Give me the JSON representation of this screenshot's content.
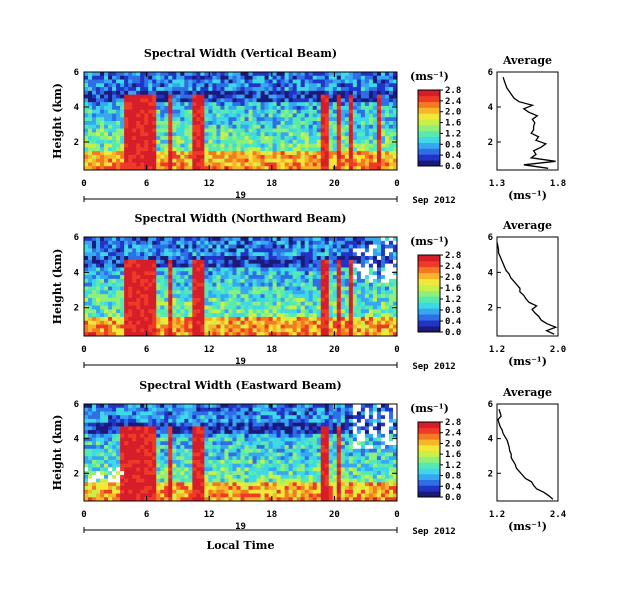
{
  "figure": {
    "xlabel": "Local Time",
    "date_label": "Sep 2012",
    "day_label": "19"
  },
  "colormap": [
    "#1a1a78",
    "#2233c8",
    "#2f6fe6",
    "#36a8f2",
    "#3fd8e6",
    "#56eab0",
    "#8ef07a",
    "#c8f048",
    "#f2e838",
    "#f7b52a",
    "#f47a22",
    "#ee3a26",
    "#d61e2a"
  ],
  "chart_data": [
    {
      "type": "heatmap",
      "title": "Spectral Width (Vertical Beam)",
      "ylabel": "Height (km)",
      "x_ticks": [
        "0",
        "6",
        "12",
        "18",
        "20",
        "0"
      ],
      "xlim": [
        0,
        24
      ],
      "y_ticks": [
        "2",
        "4",
        "6"
      ],
      "ylim": [
        0.4,
        6.0
      ],
      "colorbar": {
        "unit": "(ms⁻¹)",
        "ticks": [
          "0.0",
          "0.4",
          "0.8",
          "1.2",
          "1.6",
          "2.0",
          "2.4",
          "2.8"
        ],
        "range": [
          0.0,
          2.8
        ]
      },
      "hot_bands": [
        [
          3.0,
          5.4
        ],
        [
          6.4,
          6.9
        ],
        [
          8.2,
          9.2
        ],
        [
          18.2,
          18.7
        ],
        [
          19.3,
          19.7
        ],
        [
          20.2,
          20.5
        ],
        [
          22.5,
          22.8
        ]
      ],
      "average": {
        "title": "Average",
        "xlabel": "(ms⁻¹)",
        "x_ticks": [
          "1.3",
          "1.8"
        ],
        "xlim": [
          1.3,
          1.8
        ],
        "y_ticks": [
          "2",
          "4",
          "6"
        ],
        "ylim": [
          0.4,
          6.0
        ],
        "height": [
          0.5,
          0.7,
          0.9,
          1.1,
          1.3,
          1.5,
          1.7,
          1.9,
          2.1,
          2.3,
          2.5,
          2.7,
          2.9,
          3.1,
          3.3,
          3.5,
          3.7,
          3.9,
          4.1,
          4.3,
          4.5,
          4.7,
          4.9,
          5.1,
          5.3,
          5.5,
          5.7
        ],
        "value": [
          1.72,
          1.52,
          1.78,
          1.58,
          1.62,
          1.6,
          1.66,
          1.7,
          1.62,
          1.64,
          1.58,
          1.6,
          1.6,
          1.61,
          1.59,
          1.63,
          1.56,
          1.52,
          1.59,
          1.48,
          1.44,
          1.42,
          1.4,
          1.38,
          1.37,
          1.36,
          1.35
        ]
      }
    },
    {
      "type": "heatmap",
      "title": "Spectral Width (Northward Beam)",
      "ylabel": "Height (km)",
      "x_ticks": [
        "0",
        "6",
        "12",
        "18",
        "20",
        "0"
      ],
      "xlim": [
        0,
        24
      ],
      "y_ticks": [
        "2",
        "4",
        "6"
      ],
      "ylim": [
        0.4,
        6.0
      ],
      "colorbar": {
        "unit": "(ms⁻¹)",
        "ticks": [
          "0.0",
          "0.4",
          "0.8",
          "1.2",
          "1.6",
          "2.0",
          "2.4",
          "2.8"
        ],
        "range": [
          0.0,
          2.8
        ]
      },
      "hot_bands": [
        [
          3.0,
          5.4
        ],
        [
          6.4,
          6.9
        ],
        [
          8.2,
          9.2
        ],
        [
          18.2,
          18.7
        ],
        [
          19.3,
          19.7
        ],
        [
          20.2,
          20.5
        ]
      ],
      "average": {
        "title": "Average",
        "xlabel": "(ms⁻¹)",
        "x_ticks": [
          "1.2",
          "2.0"
        ],
        "xlim": [
          1.2,
          2.0
        ],
        "y_ticks": [
          "2",
          "4",
          "6"
        ],
        "ylim": [
          0.4,
          6.0
        ],
        "height": [
          0.5,
          0.7,
          0.9,
          1.1,
          1.3,
          1.5,
          1.7,
          1.9,
          2.1,
          2.3,
          2.5,
          2.7,
          2.9,
          3.1,
          3.3,
          3.5,
          3.7,
          3.9,
          4.1,
          4.3,
          4.5,
          4.7,
          4.9,
          5.1,
          5.3,
          5.5,
          5.7
        ],
        "value": [
          1.95,
          1.85,
          1.97,
          1.85,
          1.78,
          1.75,
          1.7,
          1.66,
          1.72,
          1.62,
          1.58,
          1.55,
          1.5,
          1.5,
          1.46,
          1.42,
          1.38,
          1.36,
          1.32,
          1.3,
          1.28,
          1.26,
          1.24,
          1.22,
          1.22,
          1.21,
          1.2
        ]
      }
    },
    {
      "type": "heatmap",
      "title": "Spectral Width (Eastward Beam)",
      "ylabel": "Height (km)",
      "x_ticks": [
        "0",
        "6",
        "12",
        "18",
        "20",
        "0"
      ],
      "xlim": [
        0,
        24
      ],
      "y_ticks": [
        "2",
        "4",
        "6"
      ],
      "ylim": [
        0.4,
        6.0
      ],
      "colorbar": {
        "unit": "(ms⁻¹)",
        "ticks": [
          "0.0",
          "0.4",
          "0.8",
          "1.2",
          "1.6",
          "2.0",
          "2.4",
          "2.8"
        ],
        "range": [
          0.0,
          2.8
        ]
      },
      "hot_bands": [
        [
          2.8,
          5.4
        ],
        [
          6.4,
          6.9
        ],
        [
          8.2,
          9.2
        ],
        [
          18.2,
          18.7
        ],
        [
          19.3,
          19.7
        ]
      ],
      "average": {
        "title": "Average",
        "xlabel": "(ms⁻¹)",
        "x_ticks": [
          "1.2",
          "2.4"
        ],
        "xlim": [
          1.2,
          2.4
        ],
        "y_ticks": [
          "2",
          "4",
          "6"
        ],
        "ylim": [
          0.4,
          6.0
        ],
        "height": [
          0.5,
          0.7,
          0.9,
          1.1,
          1.3,
          1.5,
          1.7,
          1.9,
          2.1,
          2.3,
          2.5,
          2.7,
          2.9,
          3.1,
          3.3,
          3.5,
          3.7,
          3.9,
          4.1,
          4.3,
          4.5,
          4.7,
          4.9,
          5.1,
          5.3,
          5.5,
          5.7
        ],
        "value": [
          2.3,
          2.22,
          2.12,
          1.98,
          1.92,
          1.88,
          1.76,
          1.7,
          1.64,
          1.58,
          1.56,
          1.52,
          1.48,
          1.48,
          1.45,
          1.44,
          1.42,
          1.4,
          1.36,
          1.32,
          1.3,
          1.26,
          1.24,
          1.22,
          1.28,
          1.26,
          1.24
        ]
      }
    }
  ]
}
